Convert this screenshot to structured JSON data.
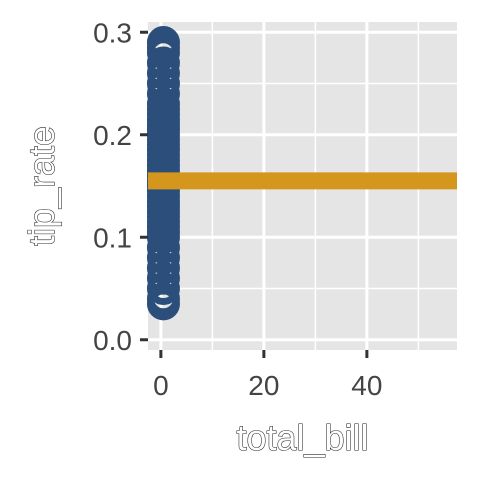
{
  "chart_data": {
    "type": "scatter",
    "title": "",
    "xlabel": "total_bill",
    "ylabel": "tip_rate",
    "xlim": [
      -2.5,
      57.5
    ],
    "ylim": [
      -0.01,
      0.31
    ],
    "x_ticks": [
      0,
      20,
      40
    ],
    "x_tick_labels": [
      "0",
      "20",
      "40"
    ],
    "y_ticks": [
      0.0,
      0.1,
      0.2,
      0.3
    ],
    "y_tick_labels": [
      "0.0",
      "0.1",
      "0.2",
      "0.3"
    ],
    "grid": true,
    "legend": "none",
    "background_color": "#e5e5e5",
    "grid_color": "#ffffff",
    "point_color": "#2b4f7a",
    "reference_line": {
      "y": 0.155,
      "color": "#d4961c"
    },
    "series": [
      {
        "x": [
          0.5,
          0.5,
          0.5,
          0.5,
          0.5,
          0.5,
          0.5,
          0.5,
          0.5,
          0.5,
          0.5,
          0.5,
          0.5,
          0.5,
          0.5,
          0.5,
          0.5,
          0.5,
          0.5,
          0.5,
          0.5,
          0.5,
          0.5,
          0.5,
          0.5,
          0.5,
          0.5,
          0.5,
          0.5,
          0.5,
          0.5,
          0.5,
          0.5,
          0.5,
          0.5,
          0.5,
          0.5,
          0.5,
          0.5,
          0.5,
          0.5
        ],
        "y": [
          0.035,
          0.04,
          0.05,
          0.06,
          0.07,
          0.08,
          0.09,
          0.1,
          0.105,
          0.11,
          0.115,
          0.12,
          0.125,
          0.13,
          0.135,
          0.14,
          0.145,
          0.15,
          0.155,
          0.16,
          0.165,
          0.17,
          0.175,
          0.18,
          0.185,
          0.19,
          0.195,
          0.2,
          0.205,
          0.21,
          0.215,
          0.22,
          0.225,
          0.23,
          0.24,
          0.25,
          0.26,
          0.27,
          0.28,
          0.285,
          0.29
        ]
      }
    ]
  }
}
